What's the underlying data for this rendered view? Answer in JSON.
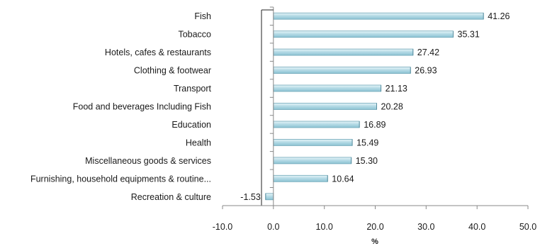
{
  "chart_data": {
    "type": "bar",
    "orientation": "horizontal",
    "categories": [
      "Fish",
      "Tobacco",
      "Hotels, cafes & restaurants",
      "Clothing & footwear",
      "Transport",
      "Food and beverages Including Fish",
      "Education",
      "Health",
      "Miscellaneous goods & services",
      "Furnishing, household equipments &  routine...",
      "Recreation & culture"
    ],
    "values": [
      41.26,
      35.31,
      27.42,
      26.93,
      21.13,
      20.28,
      16.89,
      15.49,
      15.3,
      10.64,
      -1.53
    ],
    "value_labels": [
      "41.26",
      "35.31",
      "27.42",
      "26.93",
      "21.13",
      "20.28",
      "16.89",
      "15.49",
      "15.30",
      "10.64",
      "-1.53"
    ],
    "xlabel": "%",
    "xlim": [
      -10,
      50
    ],
    "xticks": [
      "-10.0",
      "0.0",
      "10.0",
      "20.0",
      "30.0",
      "40.0",
      "50.0"
    ],
    "grid": false,
    "legend": "none",
    "bar_color": "#a9d3e0",
    "bar_edge_color": "#6fa7b8"
  }
}
